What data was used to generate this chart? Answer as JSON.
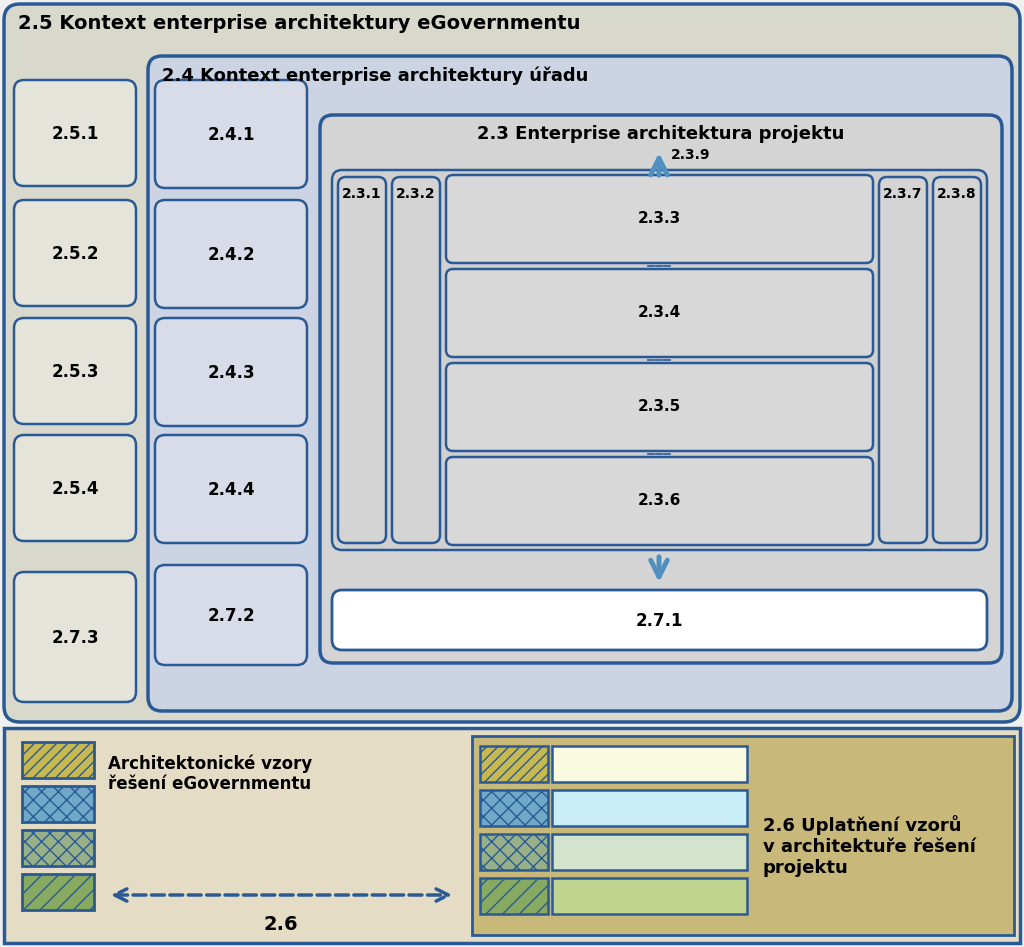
{
  "fig_width": 10.24,
  "fig_height": 9.47,
  "bg_25": "#d8d8cc",
  "bg_24": "#ccd4e4",
  "bg_23": "#d4d4d4",
  "bg_inner": "#d0d0d0",
  "bg_vert": "#d4d4d4",
  "bg_horiz": "#d8d8d8",
  "bg_271": "#ffffff",
  "bg_25x": "#e4e4da",
  "bg_24x": "#d8dce8",
  "bg_legend": "#e4dcc4",
  "bg_right_panel": "#c8b87a",
  "border_color": "#2a5a96",
  "text_color": "#000000",
  "label_25": "2.5 Kontext enterprise architektury eGovernmentu",
  "label_24": "2.4 Kontext enterprise architektury úřadu",
  "label_23": "2.3 Enterprise architektura projektu",
  "labels_25x": [
    "2.5.1",
    "2.5.2",
    "2.5.3",
    "2.5.4"
  ],
  "labels_24x": [
    "2.4.1",
    "2.4.2",
    "2.4.3",
    "2.4.4"
  ],
  "labels_23_vert": [
    "2.3.1",
    "2.3.2",
    "2.3.7",
    "2.3.8"
  ],
  "labels_23_horiz": [
    "2.3.3",
    "2.3.4",
    "2.3.5",
    "2.3.6"
  ],
  "label_239": "2.3.9",
  "label_271": "2.7.1",
  "label_272": "2.7.2",
  "label_273": "2.7.3",
  "legend_title_left": "Architektonické vzory\nřešení eGovernmentu",
  "legend_title_right": "2.6 Uplatňení vzorů\nv architektuře řešení\nprojektu",
  "label_26": "2.6",
  "hatch_fill_colors": [
    "#c8b850",
    "#70a8c8",
    "#98b088",
    "#88aa60"
  ],
  "row_colors": [
    "#fafae0",
    "#c8ecf8",
    "#d4e4cc",
    "#c0d490"
  ],
  "arrow_color": "#5090c0"
}
